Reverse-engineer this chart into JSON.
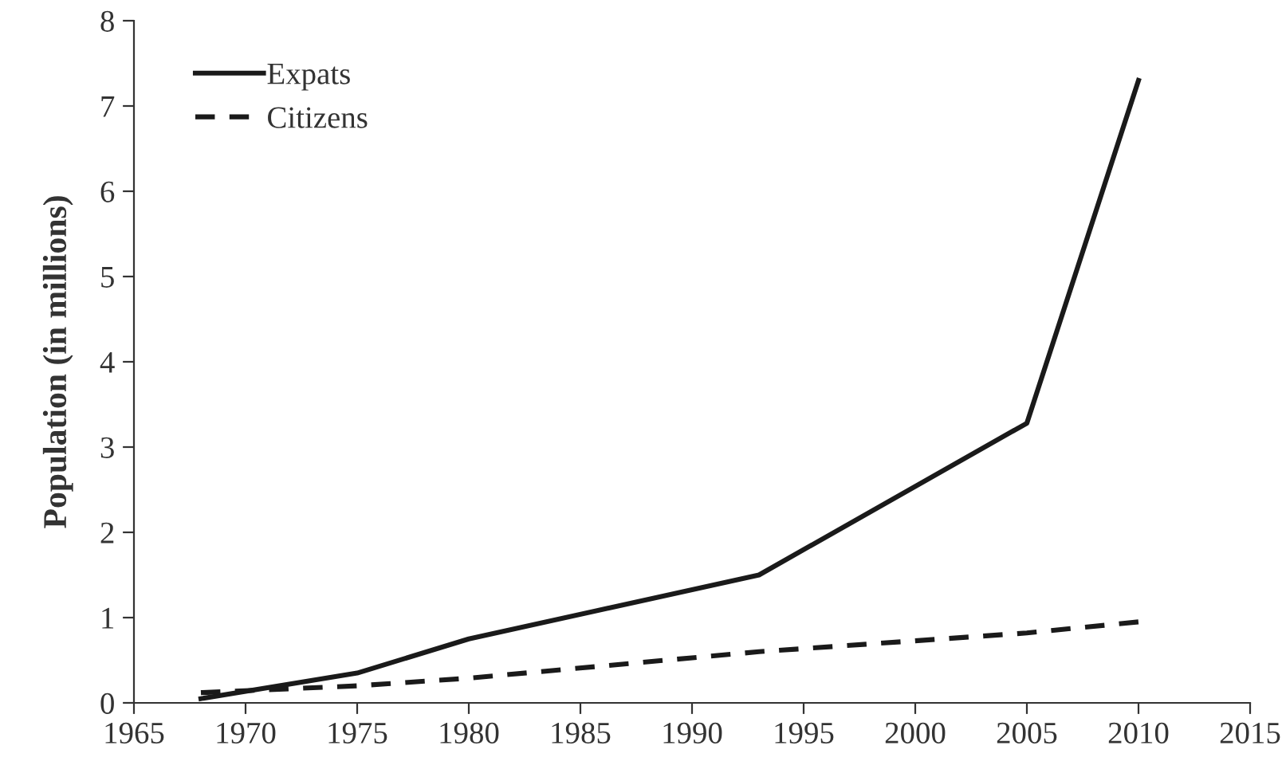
{
  "chart_data": {
    "type": "line",
    "ylabel": "Population (in millions)",
    "x": [
      1968,
      1975,
      1980,
      1993,
      2005,
      2010
    ],
    "series": [
      {
        "name": "Expats",
        "color": "#1a1a1a",
        "values": [
          0.05,
          0.35,
          0.75,
          1.5,
          3.28,
          7.3
        ],
        "line_style": "solid"
      },
      {
        "name": "Citizens",
        "color": "#1a1a1a",
        "values": [
          0.12,
          0.2,
          0.29,
          0.6,
          0.82,
          0.95
        ],
        "line_style": "dashed"
      }
    ],
    "xlim": [
      1965,
      2015
    ],
    "xticks": [
      1965,
      1970,
      1975,
      1980,
      1985,
      1990,
      1995,
      2000,
      2005,
      2010,
      2015
    ],
    "ylim": [
      0,
      8
    ],
    "yticks": [
      0,
      1,
      2,
      3,
      4,
      5,
      6,
      7,
      8
    ],
    "grid": false,
    "legend": "top left",
    "marker": "none"
  }
}
